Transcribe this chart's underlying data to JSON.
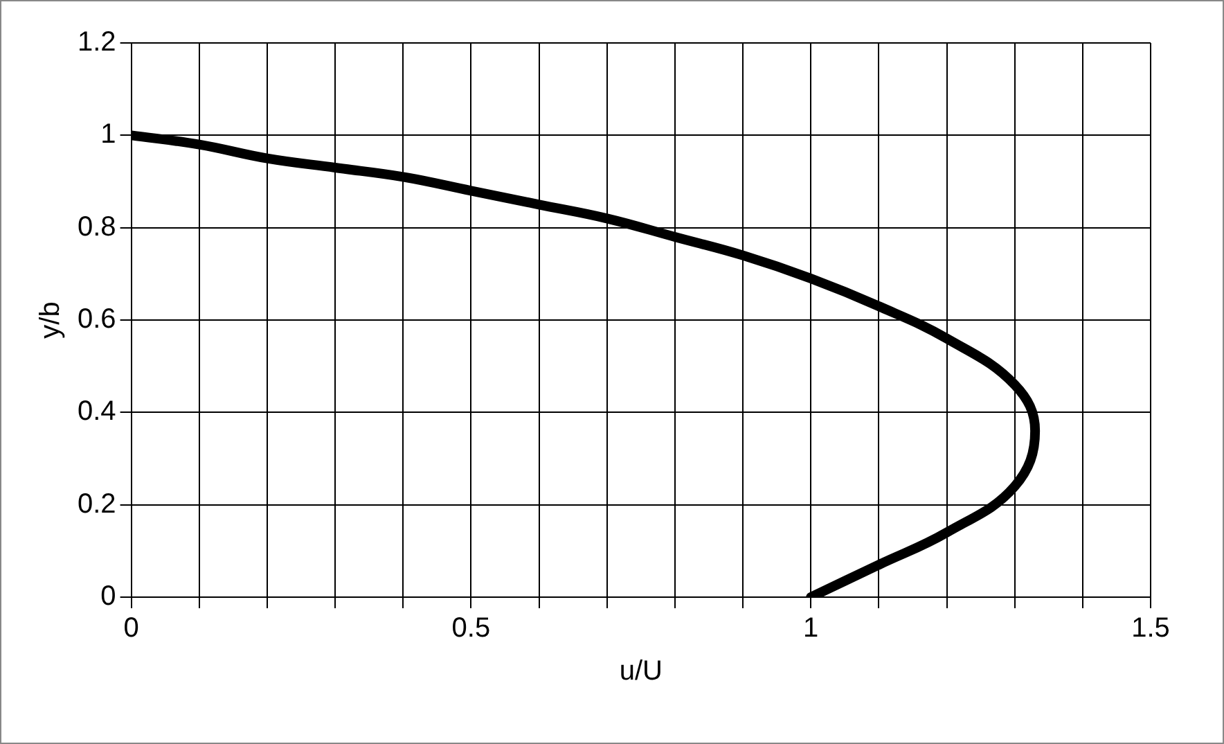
{
  "chart_data": {
    "type": "line",
    "xlabel": "u/U",
    "ylabel": "y/b",
    "series": [
      {
        "color": "#000000",
        "x": [
          0,
          0.1,
          0.2,
          0.3,
          0.4,
          0.5,
          0.6,
          0.7,
          0.8,
          0.9,
          1.0,
          1.1,
          1.2,
          1.3,
          1.33,
          1.3,
          1.2,
          1.1,
          1.0
        ],
        "values": [
          1,
          0.98,
          0.95,
          0.93,
          0.91,
          0.88,
          0.85,
          0.82,
          0.78,
          0.74,
          0.69,
          0.63,
          0.56,
          0.46,
          0.36,
          0.24,
          0.14,
          0.07,
          0
        ]
      }
    ],
    "xlim": [
      0,
      1.5
    ],
    "xticks": [
      0,
      {
        "value": 0.1,
        "label": null
      },
      {
        "value": 0.2,
        "label": null
      },
      {
        "value": 0.3,
        "label": null
      },
      {
        "value": 0.4,
        "label": null
      },
      0.5,
      {
        "value": 0.6,
        "label": null
      },
      {
        "value": 0.7,
        "label": null
      },
      {
        "value": 0.8,
        "label": null
      },
      {
        "value": 0.9,
        "label": null
      },
      1,
      {
        "value": 1.1,
        "label": null
      },
      {
        "value": 1.2,
        "label": null
      },
      {
        "value": 1.3,
        "label": null
      },
      {
        "value": 1.4,
        "label": null
      },
      1.5
    ],
    "ylim": [
      0,
      1.2
    ],
    "yticks": [
      0,
      0.2,
      0.4,
      0.6,
      0.8,
      1,
      1.2
    ],
    "grid": true,
    "legend": false,
    "marker": "none",
    "line_style": "solid"
  }
}
